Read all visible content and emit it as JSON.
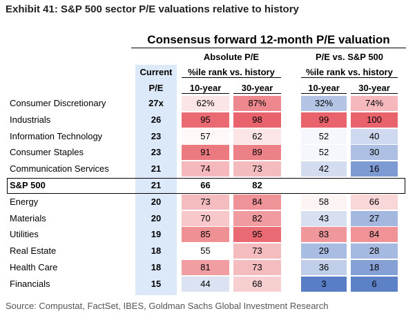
{
  "title": "Exhibit 41: S&P 500 sector P/E valuations relative to history",
  "table": {
    "title": "Consensus forward 12-month P/E valuation",
    "groups": [
      "Absolute P/E",
      "P/E vs. S&P 500"
    ],
    "subheaders": [
      "%ile rank vs. history",
      "%ile rank vs. history"
    ],
    "current_header": [
      "Current",
      "P/E"
    ],
    "columns": [
      "10-year",
      "30-year",
      "10-year",
      "30-year"
    ],
    "rows": [
      {
        "name": "Consumer Discretionary",
        "pe": "27x",
        "cells": [
          "62%",
          "87%",
          "32%",
          "74%"
        ]
      },
      {
        "name": "Industrials",
        "pe": "26",
        "cells": [
          "95",
          "98",
          "99",
          "100"
        ]
      },
      {
        "name": "Information Technology",
        "pe": "23",
        "cells": [
          "57",
          "62",
          "52",
          "40"
        ]
      },
      {
        "name": "Consumer Staples",
        "pe": "23",
        "cells": [
          "91",
          "89",
          "52",
          "30"
        ]
      },
      {
        "name": "Communication Services",
        "pe": "21",
        "cells": [
          "74",
          "73",
          "42",
          "16"
        ]
      },
      {
        "name": "S&P 500",
        "pe": "21",
        "cells": [
          "66",
          "82"
        ],
        "highlight": true
      },
      {
        "name": "Energy",
        "pe": "20",
        "cells": [
          "73",
          "84",
          "58",
          "66"
        ]
      },
      {
        "name": "Materials",
        "pe": "20",
        "cells": [
          "70",
          "82",
          "43",
          "27"
        ]
      },
      {
        "name": "Utilities",
        "pe": "19",
        "cells": [
          "85",
          "95",
          "83",
          "84"
        ]
      },
      {
        "name": "Real Estate",
        "pe": "18",
        "cells": [
          "55",
          "73",
          "29",
          "28"
        ]
      },
      {
        "name": "Health Care",
        "pe": "18",
        "cells": [
          "81",
          "73",
          "36",
          "18"
        ]
      },
      {
        "name": "Financials",
        "pe": "15",
        "cells": [
          "44",
          "68",
          "3",
          "6"
        ]
      }
    ]
  },
  "source": "Source: Compustat, FactSet, IBES, Goldman Sachs Global Investment Research"
}
